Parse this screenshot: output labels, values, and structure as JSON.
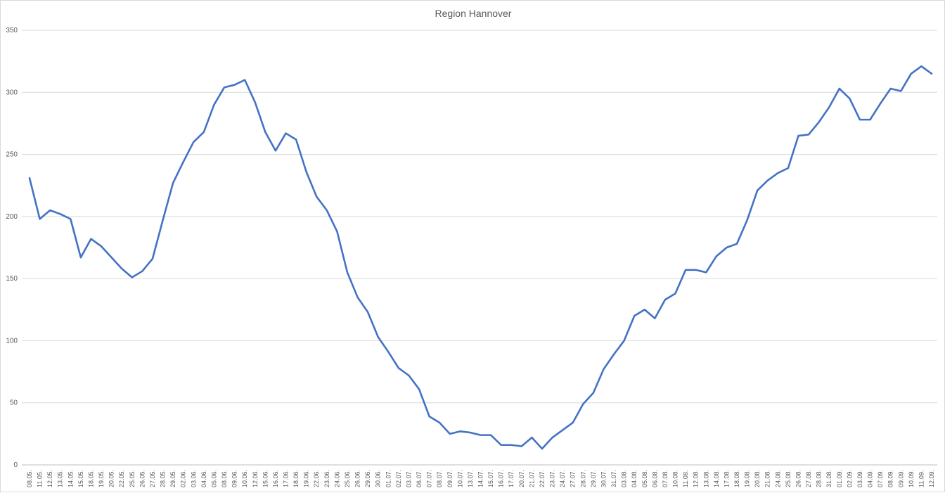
{
  "chart_data": {
    "type": "line",
    "title": "Region Hannover",
    "xlabel": "",
    "ylabel": "",
    "ylim": [
      0,
      350
    ],
    "yticks": [
      0,
      50,
      100,
      150,
      200,
      250,
      300,
      350
    ],
    "grid": "horizontal",
    "legend": "none",
    "series_color": "#4472C4",
    "categories": [
      "08.05.",
      "11.05.",
      "12.05.",
      "13.05.",
      "14.05.",
      "15.05.",
      "18.05.",
      "19.05.",
      "20.05.",
      "22.05.",
      "25.05.",
      "26.05.",
      "27.05.",
      "28.05.",
      "29.05.",
      "02.06.",
      "03.06.",
      "04.06.",
      "05.06.",
      "08.06.",
      "09.06.",
      "10.06.",
      "12.06.",
      "15.06.",
      "16.06.",
      "17.06.",
      "18.06.",
      "19.06.",
      "22.06.",
      "23.06.",
      "24.06.",
      "25.06.",
      "26.06.",
      "29.06.",
      "30.06.",
      "01.07.",
      "02.07.",
      "03.07.",
      "06.07.",
      "07.07.",
      "08.07.",
      "09.07.",
      "10.07.",
      "13.07.",
      "14.07.",
      "15.07.",
      "16.07.",
      "17.07.",
      "20.07.",
      "21.07.",
      "22.07.",
      "23.07.",
      "24.07.",
      "27.07.",
      "28.07.",
      "29.07.",
      "30.07.",
      "31.07.",
      "03.08.",
      "04.08.",
      "05.08.",
      "06.08.",
      "07.08.",
      "10.08.",
      "11.08.",
      "12.08.",
      "13.08.",
      "14.08.",
      "17.08.",
      "18.08.",
      "19.08.",
      "20.08.",
      "21.08.",
      "24.08.",
      "25.08.",
      "26.08.",
      "27.08.",
      "28.08.",
      "31.08.",
      "01.09.",
      "02.09.",
      "03.09.",
      "04.09.",
      "07.09.",
      "08.09.",
      "09.09.",
      "10.09.",
      "11.09.",
      "12.09."
    ],
    "series": [
      {
        "values": [
          231,
          198,
          205,
          202,
          198,
          167,
          182,
          176,
          167,
          158,
          151,
          156,
          166,
          197,
          227,
          244,
          260,
          268,
          290,
          304,
          306,
          310,
          292,
          268,
          253,
          267,
          262,
          236,
          216,
          205,
          188,
          155,
          135,
          123,
          103,
          91,
          78,
          72,
          61,
          39,
          34,
          25,
          27,
          26,
          24,
          24,
          16,
          16,
          15,
          22,
          13,
          22,
          28,
          34,
          49,
          58,
          77,
          89,
          100,
          120,
          125,
          118,
          133,
          138,
          157,
          157,
          155,
          168,
          175,
          178,
          197,
          221,
          229,
          235,
          239,
          265,
          266,
          276,
          288,
          303,
          295,
          278,
          278,
          291,
          303,
          301,
          315,
          321,
          315
        ]
      }
    ]
  }
}
